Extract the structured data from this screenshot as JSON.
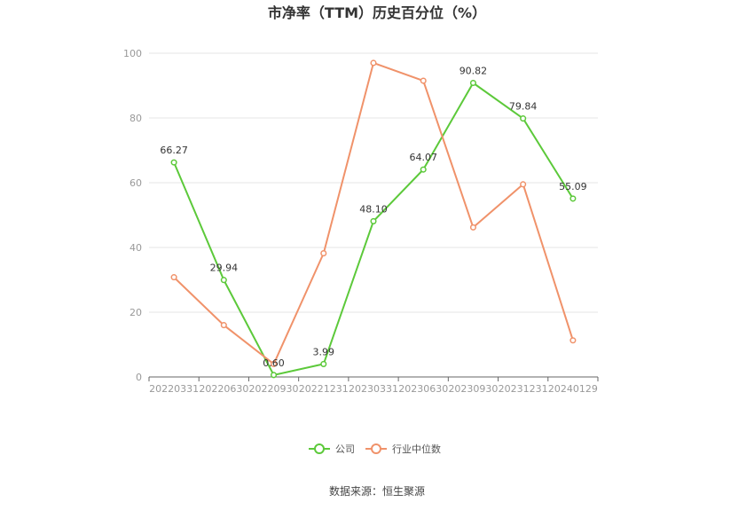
{
  "chart_data": {
    "type": "line",
    "title": "市净率（TTM）历史百分位（%）",
    "categories": [
      "20220331",
      "20220630",
      "20220930",
      "20221231",
      "20230331",
      "20230630",
      "20230930",
      "20231231",
      "20240129"
    ],
    "series": [
      {
        "name": "公司",
        "color": "#5cc93a",
        "values": [
          66.27,
          29.94,
          0.6,
          3.99,
          48.1,
          64.07,
          90.82,
          79.84,
          55.09
        ],
        "labels": [
          "66.27",
          "29.94",
          "0.60",
          "3.99",
          "48.10",
          "64.07",
          "90.82",
          "79.84",
          "55.09"
        ]
      },
      {
        "name": "行业中位数",
        "color": "#f0926a",
        "values": [
          30.8,
          16.0,
          4.0,
          38.2,
          97.0,
          91.5,
          46.2,
          59.5,
          11.3
        ]
      }
    ],
    "ylim": [
      0,
      100
    ],
    "yticks": [
      "0",
      "20",
      "40",
      "60",
      "80",
      "100"
    ],
    "grid": true,
    "legend": "bottom"
  },
  "source": "数据来源：恒生聚源"
}
